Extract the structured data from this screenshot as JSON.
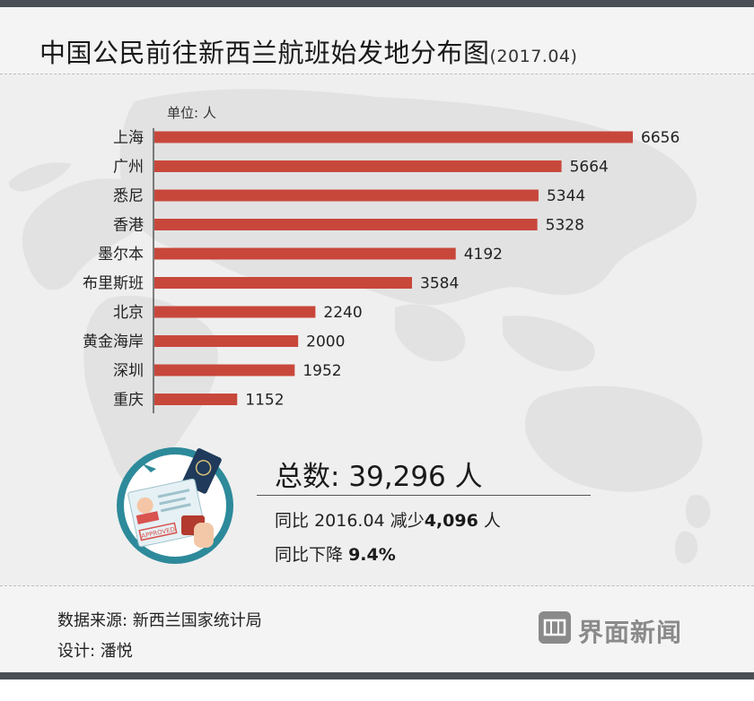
{
  "title": "中国公民前往新西兰航班始发地分布图",
  "title_date": "(2017.04)",
  "chart_data": {
    "type": "bar",
    "orientation": "horizontal",
    "unit_label": "单位: 人",
    "categories": [
      "上海",
      "广州",
      "悉尼",
      "香港",
      "墨尔本",
      "布里斯班",
      "北京",
      "黄金海岸",
      "深圳",
      "重庆"
    ],
    "values": [
      6656,
      5664,
      5344,
      5328,
      4192,
      3584,
      2240,
      2000,
      1952,
      1152
    ],
    "value_labels": [
      "6656",
      "5664",
      "5344",
      "5328",
      "4192",
      "3584",
      "2240",
      "2000",
      "1952",
      "1152"
    ],
    "xlim": [
      0,
      6656
    ],
    "bar_color": "#c8473b",
    "grid": false,
    "legend": "none"
  },
  "stats": {
    "total_label": "总数:",
    "total_value": "39,296",
    "total_unit": "人",
    "yoy_prefix": "同比",
    "yoy_period": "2016.04",
    "yoy_change_word": "减少",
    "yoy_change_value": "4,096",
    "yoy_change_unit": "人",
    "pct_label": "同比下降",
    "pct_value": "9.4%"
  },
  "footer": {
    "source": "数据来源: 新西兰国家统计局",
    "design": "设计: 潘悦"
  },
  "logo": {
    "text": "界面新闻",
    "icon": "jiemian-logo-icon"
  },
  "badge": {
    "icon": "passport-visa-icon",
    "stamp_text": "APPROVED"
  },
  "colors": {
    "bar": "#c8473b",
    "frame": "#4a4f55",
    "badge_ring": "#2d8a9a",
    "logo": "#8a8a8a"
  }
}
